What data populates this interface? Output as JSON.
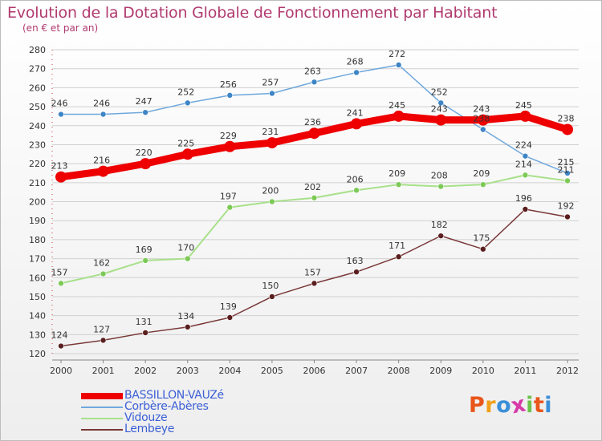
{
  "title": "Evolution de la Dotation Globale de Fonctionnement par Habitant",
  "subtitle": "(en € et par an)",
  "logo_text": "Proxiti",
  "colors": {
    "title": "#b03a6e",
    "legend_text": "#3b5fd6",
    "grid": "#d0d0d0",
    "logo": [
      "#e8561a",
      "#f2a01a",
      "#3a8fd8",
      "#d63aa8",
      "#6cc24a",
      "#e8561a",
      "#3a8fd8"
    ]
  },
  "chart_data": {
    "type": "line",
    "x": [
      "2000",
      "2001",
      "2002",
      "2003",
      "2004",
      "2005",
      "2006",
      "2007",
      "2008",
      "2009",
      "2010",
      "2011",
      "2012"
    ],
    "ylim": [
      120,
      280
    ],
    "yticks": [
      120,
      130,
      140,
      150,
      160,
      170,
      180,
      190,
      200,
      210,
      220,
      230,
      240,
      250,
      260,
      270,
      280
    ],
    "grid": "horizontal",
    "legend_position": "bottom-left",
    "series": [
      {
        "name": "BASSILLON-VAUZé",
        "color": "#ee0000",
        "width": 9,
        "marker": 7,
        "values": [
          213,
          216,
          220,
          225,
          229,
          231,
          236,
          241,
          245,
          243,
          243,
          245,
          238
        ]
      },
      {
        "name": "Corbère-Abères",
        "color": "#6fa8dc",
        "width": 1.5,
        "marker": 3.5,
        "marker_color": "#3d85c6",
        "values": [
          246,
          246,
          247,
          252,
          256,
          257,
          263,
          268,
          272,
          252,
          238,
          224,
          215
        ]
      },
      {
        "name": "Vidouze",
        "color": "#a8e08a",
        "width": 2,
        "marker": 3.5,
        "marker_color": "#7dc956",
        "values": [
          157,
          162,
          169,
          170,
          197,
          200,
          202,
          206,
          209,
          208,
          209,
          214,
          211
        ]
      },
      {
        "name": "Lembeye",
        "color": "#7a3838",
        "width": 1.5,
        "marker": 3.5,
        "marker_color": "#5a1e1e",
        "values": [
          124,
          127,
          131,
          134,
          139,
          150,
          157,
          163,
          171,
          182,
          175,
          196,
          192
        ]
      }
    ]
  }
}
